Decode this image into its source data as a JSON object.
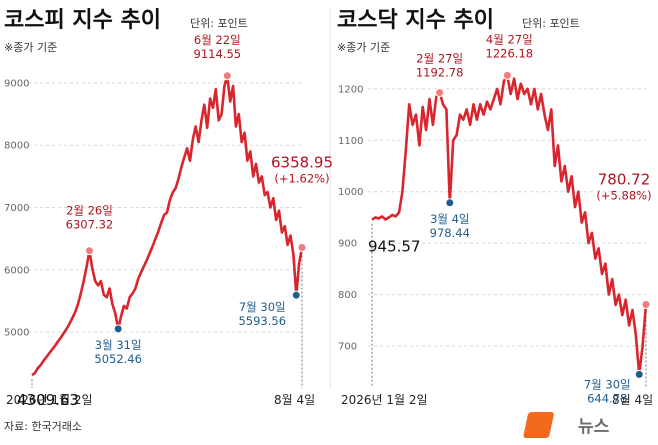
{
  "source": "자료: 한국거래소",
  "logo": {
    "text": "뉴스",
    "mark": "1",
    "color": "#f26a1b"
  },
  "colors": {
    "line": "#d9252e",
    "marker_red": "#ef7b7b",
    "marker_blue": "#1d5d8f",
    "grid": "#d7d7d7"
  },
  "chart_data": [
    {
      "type": "line",
      "title": "코스피 지수 추이",
      "unit": "단위: 포인트",
      "subtitle": "※종가 기준",
      "x_start_label": "2026년 1월 2일",
      "x_end_label": "8월 4일",
      "ylim": [
        4200,
        9400
      ],
      "yticks": [
        5000,
        6000,
        7000,
        8000,
        9000
      ],
      "grid": "horizontal dashed",
      "series_values": [
        4309.63,
        4345,
        4420,
        4470,
        4540,
        4600,
        4660,
        4720,
        4780,
        4850,
        4910,
        4980,
        5050,
        5130,
        5220,
        5320,
        5450,
        5620,
        5820,
        6050,
        6307.32,
        6020,
        5820,
        5750,
        5820,
        5600,
        5560,
        5700,
        5450,
        5300,
        5052.46,
        5250,
        5420,
        5380,
        5560,
        5620,
        5700,
        5860,
        5960,
        6060,
        6160,
        6270,
        6380,
        6500,
        6620,
        6760,
        6880,
        6920,
        7120,
        7240,
        7310,
        7460,
        7650,
        7800,
        7950,
        7750,
        8100,
        8300,
        8050,
        8400,
        8650,
        8280,
        8750,
        8600,
        8900,
        8400,
        8500,
        8950,
        9114.55,
        8700,
        8950,
        8300,
        8500,
        8050,
        8200,
        7750,
        7900,
        7500,
        7700,
        7400,
        7500,
        7200,
        7250,
        7000,
        7150,
        6800,
        6950,
        6600,
        6700,
        6400,
        6550,
        6250,
        5593.56,
        6100,
        6358.95
      ],
      "annotations": [
        {
          "date": "2026년 1월 2일",
          "value": "4309.63",
          "style": "start"
        },
        {
          "date": "2월 26일",
          "value": "6307.32",
          "style": "red"
        },
        {
          "date": "3월 31일",
          "value": "5052.46",
          "style": "blue"
        },
        {
          "date": "6월 22일",
          "value": "9114.55",
          "style": "red"
        },
        {
          "date": "7월 30일",
          "value": "5593.56",
          "style": "blue"
        },
        {
          "date": "8월 4일",
          "value": "6358.95",
          "change": "(+1.62%)",
          "style": "last"
        }
      ]
    },
    {
      "type": "line",
      "title": "코스닥 지수 추이",
      "unit": "단위: 포인트",
      "subtitle": "※종가 기준",
      "x_start_label": "2026년 1월 2일",
      "x_end_label": "8월 4일",
      "ylim": [
        630,
        1260
      ],
      "yticks": [
        700,
        800,
        900,
        1000,
        1100,
        1200
      ],
      "grid": "horizontal dashed",
      "series_values": [
        945.57,
        950,
        948,
        952,
        946,
        950,
        955,
        952,
        960,
        1000,
        1080,
        1170,
        1130,
        1150,
        1090,
        1165,
        1120,
        1180,
        1130,
        1185,
        1192.78,
        1170,
        1160,
        978.44,
        1100,
        1110,
        1150,
        1140,
        1160,
        1130,
        1170,
        1140,
        1170,
        1150,
        1175,
        1160,
        1180,
        1200,
        1170,
        1215,
        1226.18,
        1190,
        1220,
        1180,
        1210,
        1190,
        1200,
        1170,
        1200,
        1160,
        1190,
        1150,
        1120,
        1160,
        1050,
        1090,
        1020,
        1050,
        1000,
        1030,
        970,
        1000,
        940,
        960,
        900,
        920,
        870,
        890,
        840,
        860,
        800,
        830,
        780,
        800,
        760,
        790,
        740,
        770,
        720,
        644.78,
        700,
        780.72
      ],
      "annotations": [
        {
          "date": "2026년 1월 2일",
          "value": "945.57",
          "style": "start"
        },
        {
          "date": "2월 27일",
          "value": "1192.78",
          "style": "red"
        },
        {
          "date": "3월 4일",
          "value": "978.44",
          "style": "blue"
        },
        {
          "date": "4월 27일",
          "value": "1226.18",
          "style": "red"
        },
        {
          "date": "7월 30일",
          "value": "644.78",
          "style": "blue"
        },
        {
          "date": "8월 4일",
          "value": "780.72",
          "change": "(+5.88%)",
          "style": "last"
        }
      ]
    }
  ]
}
